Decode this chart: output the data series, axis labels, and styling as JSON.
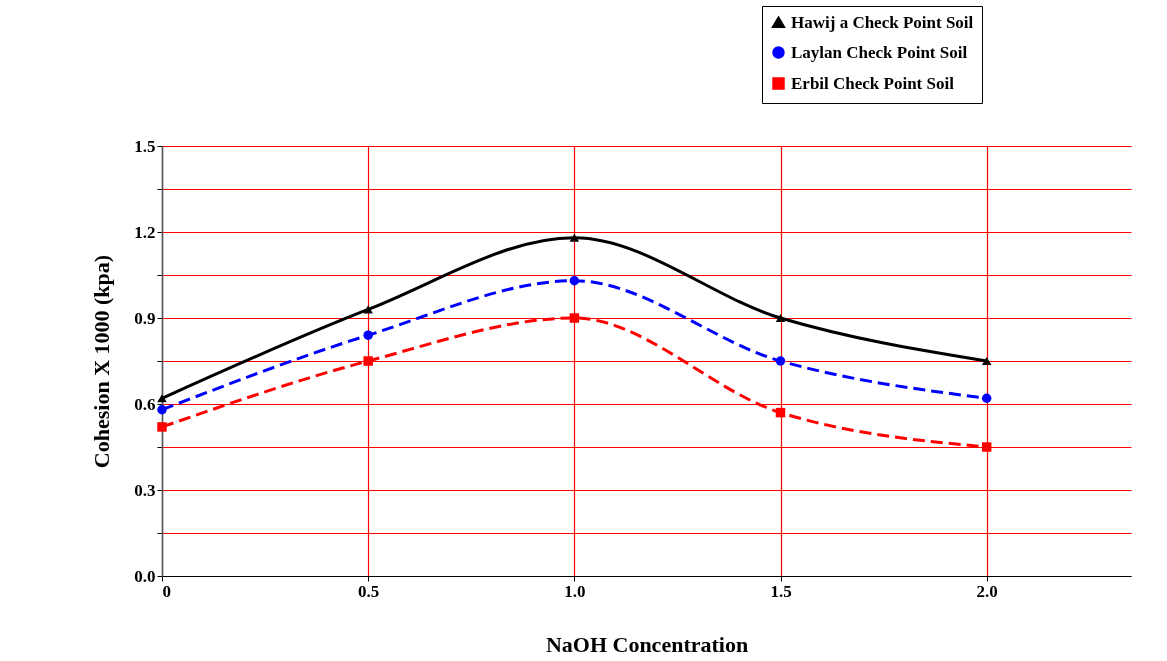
{
  "chart_data": {
    "type": "line",
    "xlabel": "NaOH Concentration",
    "ylabel": "Cohesion X 1000 (kpa)",
    "x": [
      0,
      0.5,
      1.0,
      1.5,
      2.0
    ],
    "series": [
      {
        "name": "Hawij a Check Point Soil",
        "color": "#000000",
        "marker": "triangle",
        "line_style": "solid",
        "values": [
          0.62,
          0.93,
          1.18,
          0.9,
          0.75
        ]
      },
      {
        "name": "Laylan Check Point Soil",
        "color": "#0000ff",
        "marker": "circle",
        "line_style": "dashed",
        "values": [
          0.58,
          0.84,
          1.03,
          0.75,
          0.62
        ]
      },
      {
        "name": "Erbil Check Point Soil",
        "color": "#ff0000",
        "marker": "square",
        "line_style": "dashed",
        "values": [
          0.52,
          0.75,
          0.9,
          0.57,
          0.45
        ]
      }
    ],
    "xlim": [
      0,
      2.35
    ],
    "xticks": [
      0,
      0.5,
      {
        "value": 1.0,
        "label": "1.0"
      },
      1.5,
      {
        "value": 2.0,
        "label": "2.0"
      }
    ],
    "ylim": [
      0,
      1.5
    ],
    "yticks": [
      {
        "value": 0,
        "label": "0.0"
      },
      {
        "value": 0.15,
        "label": null
      },
      0.3,
      {
        "value": 0.45,
        "label": null
      },
      0.6,
      {
        "value": 0.75,
        "label": null
      },
      0.9,
      {
        "value": 1.05,
        "label": null
      },
      1.2,
      {
        "value": 1.35,
        "label": null
      },
      1.5
    ],
    "grid": true,
    "legend": "top right"
  }
}
